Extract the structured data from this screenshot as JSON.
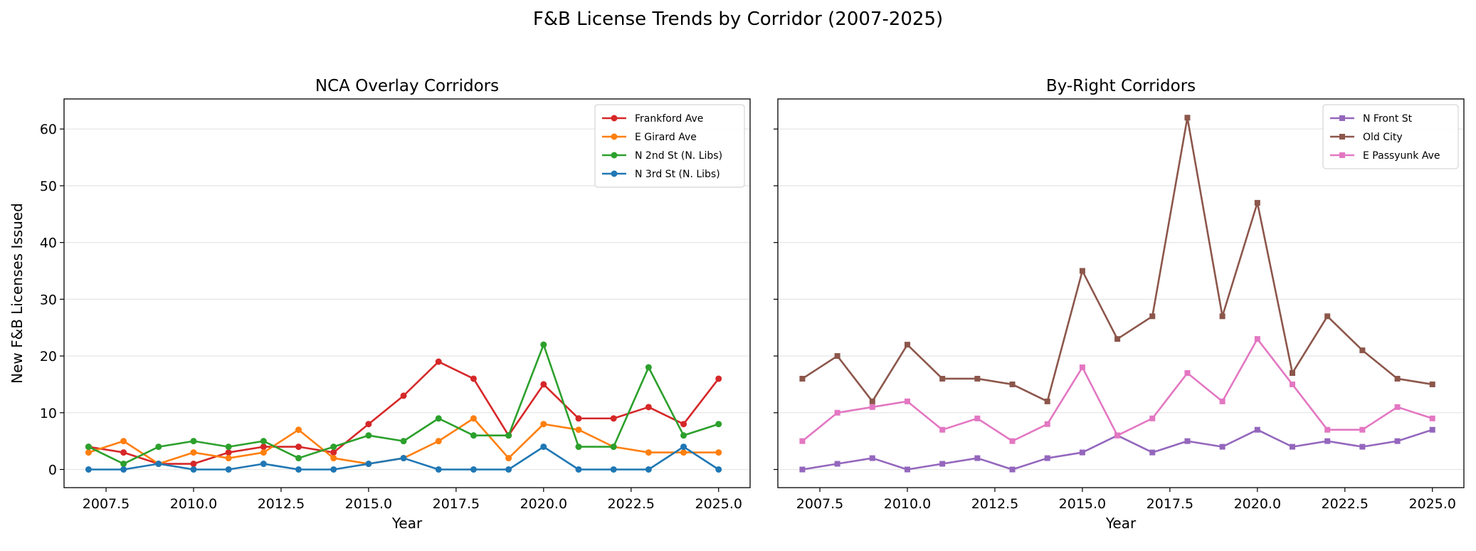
{
  "suptitle": "F&B License Trends by Corridor (2007-2025)",
  "chart_data": [
    {
      "type": "line",
      "title": "NCA Overlay Corridors",
      "xlabel": "Year",
      "ylabel": "New F&B Licenses Issued",
      "xlim": [
        2006.3,
        2025.9
      ],
      "ylim": [
        -3.2,
        65.3
      ],
      "xticks": [
        2007.5,
        2010.0,
        2012.5,
        2015.0,
        2017.5,
        2020.0,
        2022.5,
        2025.0
      ],
      "xtick_labels": [
        "2007.5",
        "2010.0",
        "2012.5",
        "2015.0",
        "2017.5",
        "2020.0",
        "2022.5",
        "2025.0"
      ],
      "yticks": [
        0,
        10,
        20,
        30,
        40,
        50,
        60
      ],
      "ytick_labels": [
        "0",
        "10",
        "20",
        "30",
        "40",
        "50",
        "60"
      ],
      "grid": "y",
      "legend": "top-right",
      "marker": "circle",
      "x": [
        2007,
        2008,
        2009,
        2010,
        2011,
        2012,
        2013,
        2014,
        2015,
        2016,
        2017,
        2018,
        2019,
        2020,
        2021,
        2022,
        2023,
        2024,
        2025
      ],
      "series": [
        {
          "name": "Frankford Ave",
          "color": "#d62728",
          "values": [
            4,
            3,
            1,
            1,
            3,
            4,
            4,
            3,
            8,
            13,
            19,
            16,
            6,
            15,
            9,
            9,
            11,
            8,
            16
          ]
        },
        {
          "name": "E Girard Ave",
          "color": "#ff7f0e",
          "values": [
            3,
            5,
            1,
            3,
            2,
            3,
            7,
            2,
            1,
            2,
            5,
            9,
            2,
            8,
            7,
            4,
            3,
            3,
            3
          ]
        },
        {
          "name": "N 2nd St (N. Libs)",
          "color": "#2ca02c",
          "values": [
            4,
            1,
            4,
            5,
            4,
            5,
            2,
            4,
            6,
            5,
            9,
            6,
            6,
            22,
            4,
            4,
            18,
            6,
            8
          ]
        },
        {
          "name": "N 3rd St (N. Libs)",
          "color": "#1f77b4",
          "values": [
            0,
            0,
            1,
            0,
            0,
            1,
            0,
            0,
            1,
            2,
            0,
            0,
            0,
            4,
            0,
            0,
            0,
            4,
            0
          ]
        }
      ]
    },
    {
      "type": "line",
      "title": "By-Right Corridors",
      "xlabel": "Year",
      "ylabel": "",
      "xlim": [
        2006.3,
        2025.9
      ],
      "ylim": [
        -3.2,
        65.3
      ],
      "xticks": [
        2007.5,
        2010.0,
        2012.5,
        2015.0,
        2017.5,
        2020.0,
        2022.5,
        2025.0
      ],
      "xtick_labels": [
        "2007.5",
        "2010.0",
        "2012.5",
        "2015.0",
        "2017.5",
        "2020.0",
        "2022.5",
        "2025.0"
      ],
      "yticks": [
        0,
        10,
        20,
        30,
        40,
        50,
        60
      ],
      "ytick_labels": [],
      "grid": "y",
      "legend": "top-right",
      "marker": "square",
      "x": [
        2007,
        2008,
        2009,
        2010,
        2011,
        2012,
        2013,
        2014,
        2015,
        2016,
        2017,
        2018,
        2019,
        2020,
        2021,
        2022,
        2023,
        2024,
        2025
      ],
      "series": [
        {
          "name": "N Front St",
          "color": "#9467bd",
          "values": [
            0,
            1,
            2,
            0,
            1,
            2,
            0,
            2,
            3,
            6,
            3,
            5,
            4,
            7,
            4,
            5,
            4,
            5,
            7
          ]
        },
        {
          "name": "Old City",
          "color": "#8c564b",
          "values": [
            16,
            20,
            12,
            22,
            16,
            16,
            15,
            12,
            35,
            23,
            27,
            62,
            27,
            47,
            17,
            27,
            21,
            16,
            15
          ]
        },
        {
          "name": "E Passyunk Ave",
          "color": "#e377c2",
          "values": [
            5,
            10,
            11,
            12,
            7,
            9,
            5,
            8,
            18,
            6,
            9,
            17,
            12,
            23,
            15,
            7,
            7,
            11,
            9
          ]
        }
      ]
    }
  ]
}
